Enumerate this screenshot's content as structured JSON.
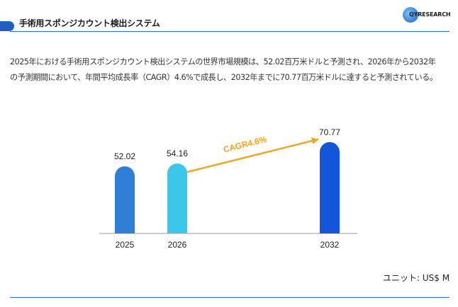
{
  "header": {
    "title": "手術用スポンジカウント検出システム",
    "logo_text": "QYRESEARCH",
    "accent_color": "#1f5fbf"
  },
  "summary": "2025年における手術用スポンジカウント検出システムの世界市場規模は、52.02百万米ドルと予測され、2026年から2032年\nの予測期間において、年間平均成長率（CAGR）4.6%で成長し、2032年までに70.77百万米ドルに達すると予測されている。",
  "chart_data": {
    "type": "bar",
    "categories": [
      "2025",
      "2026",
      "2032"
    ],
    "values": [
      52.02,
      54.16,
      70.77
    ],
    "value_labels": [
      "52.02",
      "54.16",
      "70.77"
    ],
    "colors": [
      "#2f7fd6",
      "#3cc6ea",
      "#1456d9"
    ],
    "annotation": {
      "text": "CAGR4.6%",
      "color": "#f7a21b",
      "from": "2026",
      "to": "2032"
    },
    "ylim": [
      0,
      80
    ],
    "grid": false,
    "xlabel": "",
    "ylabel": ""
  },
  "unit_label": "ユニット: US$ M"
}
